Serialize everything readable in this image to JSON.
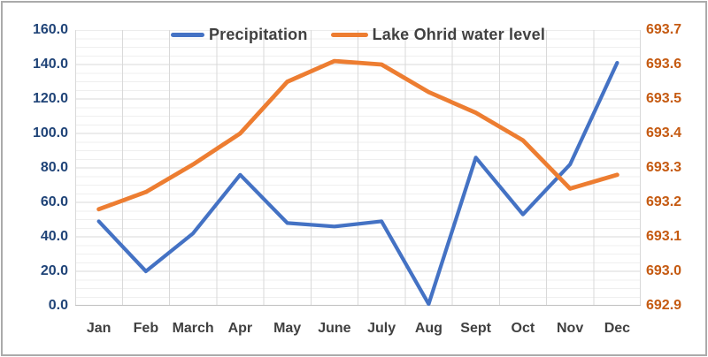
{
  "window": {
    "background": "#FFFFFF",
    "border_color": "#ABABAB"
  },
  "chart_data": {
    "type": "line",
    "title": "",
    "categories": [
      "Jan",
      "Feb",
      "March",
      "Apr",
      "May",
      "June",
      "July",
      "Aug",
      "Sept",
      "Oct",
      "Nov",
      "Dec"
    ],
    "series": [
      {
        "name": "Precipitation",
        "yaxis": "left",
        "color": "#4472C4",
        "stroke_width": 4.2,
        "values": [
          49,
          20,
          42,
          76,
          48,
          46,
          49,
          1,
          86,
          53,
          82,
          141
        ]
      },
      {
        "name": "Lake Ohrid water level",
        "yaxis": "right",
        "color": "#ED7D31",
        "stroke_width": 4.8,
        "values": [
          693.18,
          693.23,
          693.31,
          693.4,
          693.55,
          693.61,
          693.6,
          693.52,
          693.46,
          693.38,
          693.24,
          693.28
        ]
      }
    ],
    "left_axis": {
      "min": 0,
      "max": 160,
      "major_step": 20,
      "minor_step": 5,
      "label_color": "#1F4377",
      "tick_labels": [
        "160.0",
        "140.0",
        "120.0",
        "100.0",
        "80.0",
        "60.0",
        "40.0",
        "20.0",
        "0.0"
      ]
    },
    "right_axis": {
      "min": 692.9,
      "max": 693.7,
      "major_step": 0.1,
      "label_color": "#C55A11",
      "tick_labels": [
        "693.7",
        "693.6",
        "693.5",
        "693.4",
        "693.3",
        "693.2",
        "693.1",
        "693.0",
        "692.9"
      ]
    },
    "x_axis": {
      "label_color": "#404040"
    },
    "legend": {
      "position": "top",
      "text_color": "#404040"
    },
    "grid": {
      "major_color": "#D9D9D9",
      "minor_color": "#EFEFEF",
      "axis_line_color": "#BFBFBF",
      "vertical_major_on": true,
      "horizontal_minor_on": true
    }
  }
}
